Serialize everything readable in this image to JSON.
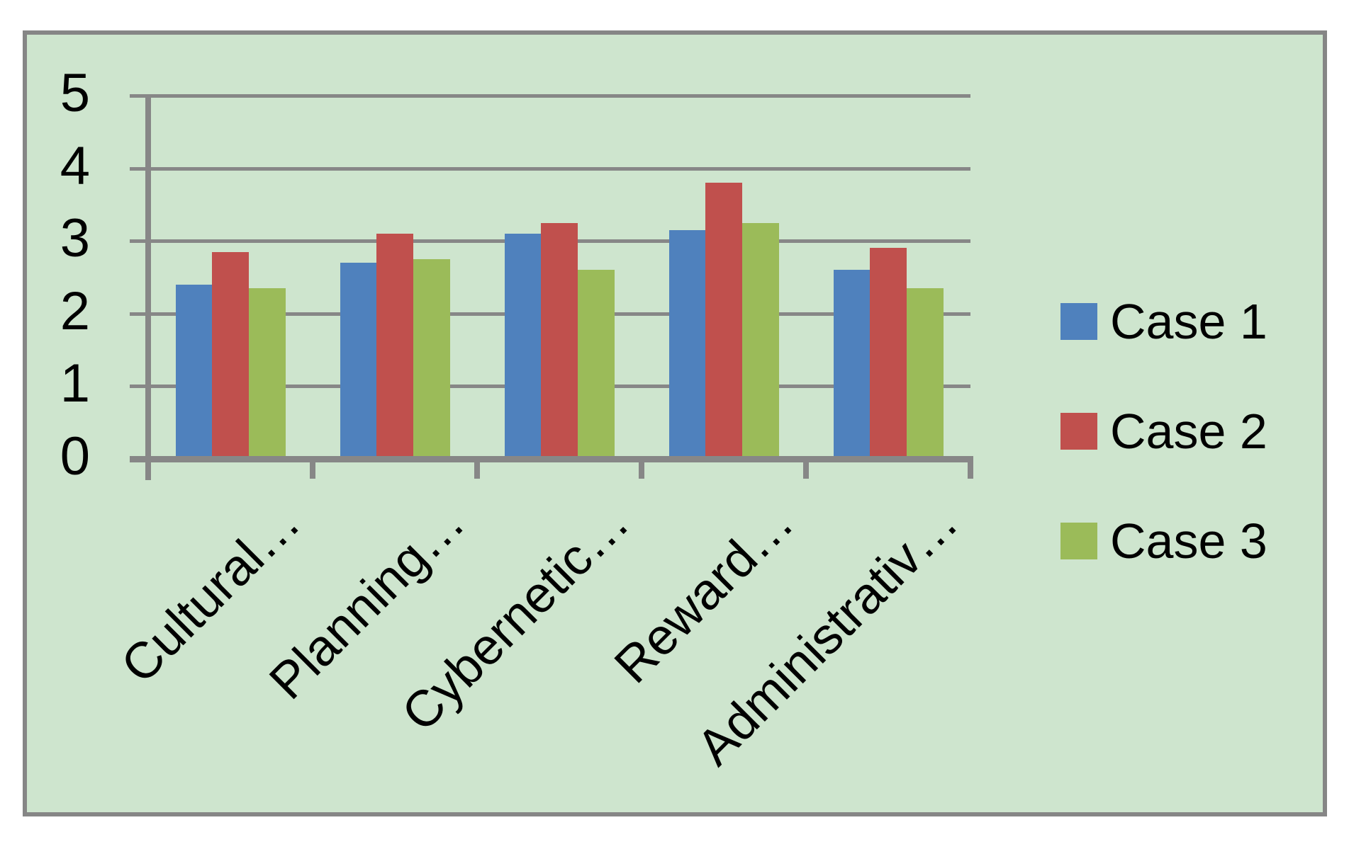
{
  "chart_data": {
    "type": "bar",
    "title": "",
    "categories": [
      "Cultural…",
      "Planning…",
      "Cybernetic…",
      "Reward…",
      "Administrativ…"
    ],
    "series": [
      {
        "name": "Case 1",
        "color": "#4F81BD",
        "values": [
          2.4,
          2.7,
          3.1,
          3.15,
          2.6
        ]
      },
      {
        "name": "Case 2",
        "color": "#C0504D",
        "values": [
          2.85,
          3.1,
          3.25,
          3.8,
          2.9
        ]
      },
      {
        "name": "Case 3",
        "color": "#9BBB59",
        "values": [
          2.35,
          2.75,
          2.6,
          3.25,
          2.35
        ]
      }
    ],
    "y_axis": {
      "min": 0,
      "max": 5,
      "tick_step": 1,
      "tick_labels": [
        "0",
        "1",
        "2",
        "3",
        "4",
        "5"
      ]
    },
    "grid": true,
    "legend_position": "right",
    "plot_background": "#CEE5CE",
    "page_background": "#FFFFFF",
    "axis_color": "#878787",
    "frame_border_color": "#868686",
    "text_color": "#000000"
  }
}
